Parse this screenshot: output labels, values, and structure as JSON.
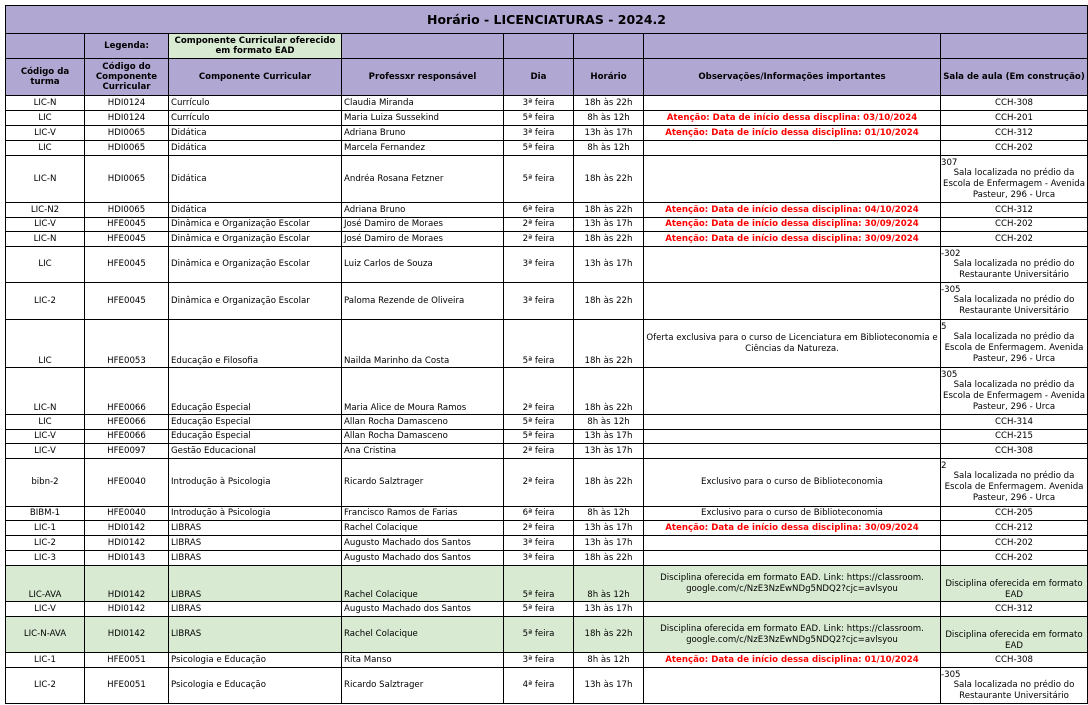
{
  "title": "Horário - LICENCIATURAS - 2024.2",
  "legend": {
    "label": "Legenda:",
    "ead_text": "Componente Curricular oferecido em formato EAD",
    "ead_color": "#d9ead3"
  },
  "colors": {
    "header": "#b1a7d3",
    "warning": "#ff0000"
  },
  "columns": [
    "Código da turma",
    "Código do Componente Curricular",
    "Componente Curricular",
    "Professxr responsável",
    "Dia",
    "Horário",
    "Observações/Informações importantes",
    "Sala de aula (Em construção)"
  ],
  "rows": [
    {
      "turma": "LIC-N",
      "codigo": "HDI0124",
      "componente": "Currículo",
      "professor": "Claudia Miranda",
      "dia": "3ª feira",
      "horario": "18h às 22h",
      "obs": "",
      "obs_warning": false,
      "room_prefix": "",
      "room": "CCH-308",
      "ead": false
    },
    {
      "turma": "LIC",
      "codigo": "HDI0124",
      "componente": "Currículo",
      "professor": "Maria Luiza Sussekind",
      "dia": "5ª feira",
      "horario": "8h às 12h",
      "obs": "Atenção: Data de início dessa discplina: 03/10/2024",
      "obs_warning": true,
      "room_prefix": "",
      "room": "CCH-201",
      "ead": false
    },
    {
      "turma": "LIC-V",
      "codigo": "HDI0065",
      "componente": "Didática",
      "professor": "Adriana Bruno",
      "dia": "3ª feira",
      "horario": "13h às 17h",
      "obs": "Atenção: Data de início dessa disciplina: 01/10/2024",
      "obs_warning": true,
      "room_prefix": "",
      "room": "CCH-312",
      "ead": false
    },
    {
      "turma": "LIC",
      "codigo": "HDI0065",
      "componente": "Didática",
      "professor": "Marcela Fernandez",
      "dia": "5ª feira",
      "horario": "8h às 12h",
      "obs": "",
      "obs_warning": false,
      "room_prefix": "",
      "room": "CCH-202",
      "ead": false
    },
    {
      "turma": "LIC-N",
      "codigo": "HDI0065",
      "componente": "Didática",
      "professor": "Andréa Rosana Fetzner",
      "dia": "5ª feira",
      "horario": "18h às 22h",
      "obs": "",
      "obs_warning": false,
      "room_prefix": "307",
      "room": "Sala localizada no prédio da Escola de Enfermagem - Avenida Pasteur, 296 - Urca",
      "ead": false
    },
    {
      "turma": "LIC-N2",
      "codigo": "HDI0065",
      "componente": "Didática",
      "professor": "Adriana Bruno",
      "dia": "6ª feira",
      "horario": "18h às 22h",
      "obs": "Atenção: Data de início dessa disciplina: 04/10/2024",
      "obs_warning": true,
      "room_prefix": "",
      "room": "CCH-312",
      "ead": false
    },
    {
      "turma": "LIC-V",
      "codigo": "HFE0045",
      "componente": "Dinâmica e Organização Escolar",
      "professor": "José Damiro de Moraes",
      "dia": "2ª feira",
      "horario": "13h às 17h",
      "obs": "Atenção: Data de início dessa disciplina: 30/09/2024",
      "obs_warning": true,
      "room_prefix": "",
      "room": "CCH-202",
      "ead": false
    },
    {
      "turma": "LIC-N",
      "codigo": "HFE0045",
      "componente": "Dinâmica e Organização Escolar",
      "professor": "José Damiro de Moraes",
      "dia": "2ª feira",
      "horario": "18h às 22h",
      "obs": "Atenção: Data de início dessa disciplina: 30/09/2024",
      "obs_warning": true,
      "room_prefix": "",
      "room": "CCH-202",
      "ead": false
    },
    {
      "turma": "LIC",
      "codigo": "HFE0045",
      "componente": "Dinâmica e Organização Escolar",
      "professor": "Luiz  Carlos de Souza",
      "dia": "3ª feira",
      "horario": "13h às 17h",
      "obs": "",
      "obs_warning": false,
      "room_prefix": "-302",
      "room": "Sala localizada no prédio do Restaurante Universitário",
      "ead": false
    },
    {
      "turma": "LIC-2",
      "codigo": "HFE0045",
      "componente": "Dinâmica e Organização Escolar",
      "professor": "Paloma Rezende de Oliveira",
      "dia": "3ª feira",
      "horario": "18h às 22h",
      "obs": "",
      "obs_warning": false,
      "room_prefix": "-305",
      "room": "Sala localizada no prédio do Restaurante Universitário",
      "ead": false
    },
    {
      "turma": "LIC",
      "codigo": "HFE0053",
      "componente": "Educação e Filosofia",
      "professor": "Nailda Marinho da Costa",
      "dia": "5ª feira",
      "horario": "18h às 22h",
      "obs": "Oferta exclusiva para o curso de Licenciatura em Biblioteconomia e Ciências da Natureza.",
      "obs_warning": false,
      "room_prefix": "5",
      "room": "Sala localizada no prédio da Escola de Enfermagem. Avenida Pasteur, 296 - Urca",
      "ead": false
    },
    {
      "turma": "LIC-N",
      "codigo": "HFE0066",
      "componente": "Educação Especial",
      "professor": "Maria Alice de Moura Ramos",
      "dia": "2ª feira",
      "horario": "18h às 22h",
      "obs": "",
      "obs_warning": false,
      "room_prefix": "305",
      "room": "Sala localizada no prédio da Escola de Enfermagem - Avenida Pasteur, 296 - Urca",
      "ead": false
    },
    {
      "turma": "LIC",
      "codigo": "HFE0066",
      "componente": "Educação Especial",
      "professor": "Allan Rocha Damasceno",
      "dia": "5ª feira",
      "horario": "8h às 12h",
      "obs": "",
      "obs_warning": false,
      "room_prefix": "",
      "room": "CCH-314",
      "ead": false
    },
    {
      "turma": "LIC-V",
      "codigo": "HFE0066",
      "componente": "Educação Especial",
      "professor": "Allan Rocha Damasceno",
      "dia": "5ª feira",
      "horario": "13h às 17h",
      "obs": "",
      "obs_warning": false,
      "room_prefix": "",
      "room": "CCH-215",
      "ead": false
    },
    {
      "turma": "LIC-V",
      "codigo": "HFE0097",
      "componente": "Gestão Educacional",
      "professor": "Ana Cristina",
      "dia": "2ª feira",
      "horario": "13h às 17h",
      "obs": "",
      "obs_warning": false,
      "room_prefix": "",
      "room": "CCH-308",
      "ead": false
    },
    {
      "turma": "bibn-2",
      "codigo": "HFE0040",
      "componente": "Introdução à Psicologia",
      "professor": "Ricardo Salztrager",
      "dia": "2ª feira",
      "horario": "18h às 22h",
      "obs": "Exclusivo para o curso de Biblioteconomia",
      "obs_warning": false,
      "room_prefix": "2",
      "room": "Sala localizada no prédio da Escola de Enfermagem. Avenida Pasteur, 296 - Urca",
      "ead": false
    },
    {
      "turma": "BIBM-1",
      "codigo": "HFE0040",
      "componente": "Introdução à Psicologia",
      "professor": "Francisco Ramos de Farias",
      "dia": "6ª feira",
      "horario": "8h às 12h",
      "obs": "Exclusivo para o curso de Biblioteconomia",
      "obs_warning": false,
      "room_prefix": "",
      "room": "CCH-205",
      "ead": false
    },
    {
      "turma": "LIC-1",
      "codigo": "HDI0142",
      "componente": "LIBRAS",
      "professor": "Rachel Colacique",
      "dia": "2ª feira",
      "horario": "13h às 17h",
      "obs": "Atenção: Data de início dessa disciplina: 30/09/2024",
      "obs_warning": true,
      "room_prefix": "",
      "room": "CCH-212",
      "ead": false
    },
    {
      "turma": "LIC-2",
      "codigo": "HDI0142",
      "componente": "LIBRAS",
      "professor": "Augusto Machado dos Santos",
      "dia": "3ª feira",
      "horario": "13h às 17h",
      "obs": "",
      "obs_warning": false,
      "room_prefix": "",
      "room": "CCH-202",
      "ead": false
    },
    {
      "turma": "LIC-3",
      "codigo": "HDI0143",
      "componente": "LIBRAS",
      "professor": "Augusto Machado dos Santos",
      "dia": "3ª feira",
      "horario": "18h às 22h",
      "obs": "",
      "obs_warning": false,
      "room_prefix": "",
      "room": "CCH-202",
      "ead": false
    },
    {
      "turma": "LIC-AVA",
      "codigo": "HDI0142",
      "componente": "LIBRAS",
      "professor": "Rachel Colacique",
      "dia": "5ª feira",
      "horario": "8h às 12h",
      "obs": "Disciplina oferecida em formato EAD. Link: https://classroom. google.com/c/NzE3NzEwNDg5NDQ2?cjc=avlsyou",
      "obs_warning": false,
      "room_prefix": "",
      "room": "Disciplina oferecida em formato EAD",
      "ead": true
    },
    {
      "turma": "LIC-V",
      "codigo": "HDI0142",
      "componente": "LIBRAS",
      "professor": "Augusto Machado dos Santos",
      "dia": "5ª feira",
      "horario": "13h às 17h",
      "obs": "",
      "obs_warning": false,
      "room_prefix": "",
      "room": "CCH-312",
      "ead": false
    },
    {
      "turma": "LIC-N-AVA",
      "codigo": "HDI0142",
      "componente": "LIBRAS",
      "professor": "Rachel Colacique",
      "dia": "5ª feira",
      "horario": "18h às 22h",
      "obs": "Disciplina oferecida em formato EAD. Link: https://classroom. google.com/c/NzE3NzEwNDg5NDQ2?cjc=avlsyou",
      "obs_warning": false,
      "room_prefix": "",
      "room": "Disciplina oferecida em formato EAD",
      "ead": true
    },
    {
      "turma": "LIC-1",
      "codigo": "HFE0051",
      "componente": "Psicologia e Educação",
      "professor": "Rita Manso",
      "dia": "3ª feira",
      "horario": "8h às 12h",
      "obs": "Atenção: Data de início dessa disciplina: 01/10/2024",
      "obs_warning": true,
      "room_prefix": "",
      "room": "CCH-308",
      "ead": false
    },
    {
      "turma": "LIC-2",
      "codigo": "HFE0051",
      "componente": "Psicologia e Educação",
      "professor": "Ricardo Salztrager",
      "dia": "4ª feira",
      "horario": "13h às 17h",
      "obs": "",
      "obs_warning": false,
      "room_prefix": "-305",
      "room": "Sala localizada no prédio do Restaurante Universitário",
      "ead": false
    }
  ]
}
